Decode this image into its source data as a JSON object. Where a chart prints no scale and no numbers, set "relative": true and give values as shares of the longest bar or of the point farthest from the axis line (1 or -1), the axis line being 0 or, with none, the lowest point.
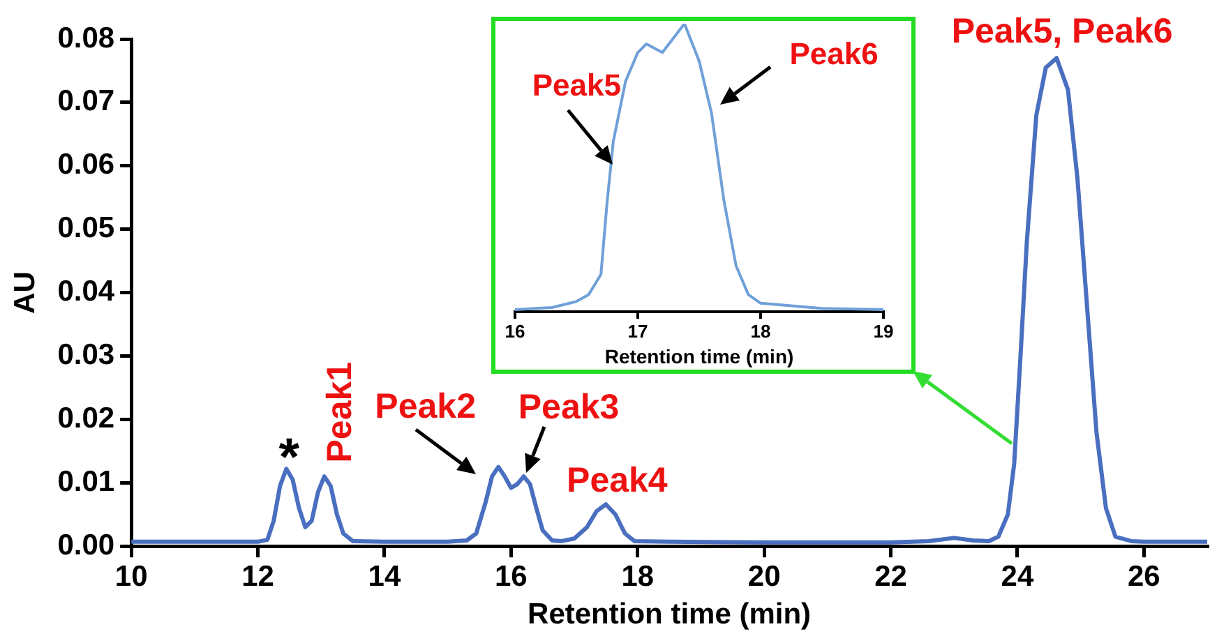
{
  "chart_data": [
    {
      "type": "line",
      "xlabel": "Retention time (min)",
      "ylabel": "AU",
      "color": "#4a6fc0",
      "x": [
        10,
        11,
        12,
        12.15,
        12.25,
        12.35,
        12.45,
        12.55,
        12.65,
        12.75,
        12.85,
        12.95,
        13.05,
        13.15,
        13.25,
        13.35,
        13.5,
        14,
        15,
        15.3,
        15.45,
        15.6,
        15.7,
        15.8,
        15.9,
        16.0,
        16.1,
        16.2,
        16.3,
        16.4,
        16.5,
        16.65,
        16.8,
        17.0,
        17.2,
        17.35,
        17.5,
        17.65,
        17.8,
        17.95,
        18.5,
        20,
        22,
        22.6,
        23.0,
        23.3,
        23.55,
        23.7,
        23.85,
        23.95,
        24.05,
        24.15,
        24.3,
        24.45,
        24.62,
        24.8,
        24.95,
        25.1,
        25.25,
        25.4,
        25.55,
        25.8,
        26,
        27
      ],
      "values": [
        0.0007,
        0.0007,
        0.0007,
        0.001,
        0.004,
        0.0095,
        0.0122,
        0.0105,
        0.006,
        0.003,
        0.004,
        0.0085,
        0.011,
        0.0095,
        0.005,
        0.002,
        0.0008,
        0.0007,
        0.0007,
        0.0009,
        0.002,
        0.007,
        0.011,
        0.0125,
        0.011,
        0.0092,
        0.0098,
        0.011,
        0.0098,
        0.006,
        0.0025,
        0.0009,
        0.0008,
        0.0012,
        0.003,
        0.0055,
        0.0066,
        0.005,
        0.002,
        0.0008,
        0.0007,
        0.0006,
        0.0006,
        0.0008,
        0.0013,
        0.0009,
        0.0008,
        0.0015,
        0.005,
        0.013,
        0.03,
        0.048,
        0.068,
        0.0755,
        0.077,
        0.072,
        0.058,
        0.038,
        0.018,
        0.006,
        0.0015,
        0.0008,
        0.0007,
        0.0007
      ],
      "xlim": [
        10,
        27
      ],
      "xticks": [
        10,
        12,
        14,
        16,
        18,
        20,
        22,
        24,
        26
      ],
      "ylim": [
        0,
        0.08
      ],
      "yticks": [
        {
          "value": 0,
          "label": "0.00"
        },
        {
          "value": 0.01,
          "label": "0.01"
        },
        {
          "value": 0.02,
          "label": "0.02"
        },
        {
          "value": 0.03,
          "label": "0.03"
        },
        {
          "value": 0.04,
          "label": "0.04"
        },
        {
          "value": 0.05,
          "label": "0.05"
        },
        {
          "value": 0.06,
          "label": "0.06"
        },
        {
          "value": 0.07,
          "label": "0.07"
        },
        {
          "value": 0.08,
          "label": "0.08"
        }
      ],
      "annotations": [
        {
          "text": "*",
          "x": 12.45,
          "y": 0.0122
        },
        {
          "text": "Peak1",
          "x": 13.05,
          "y": 0.011
        },
        {
          "text": "Peak2",
          "x": 15.75,
          "y": 0.011
        },
        {
          "text": "Peak3",
          "x": 16.25,
          "y": 0.0105
        },
        {
          "text": "Peak4",
          "x": 17.5,
          "y": 0.0066
        },
        {
          "text": "Peak5, Peak6",
          "x": 24.62,
          "y": 0.077
        }
      ]
    },
    {
      "type": "line",
      "xlabel": "Retention time (min)",
      "color": "#6fa0d8",
      "relative": true,
      "x": [
        16,
        16.3,
        16.5,
        16.6,
        16.7,
        16.75,
        16.8,
        16.9,
        17.0,
        17.07,
        17.2,
        17.38,
        17.5,
        17.6,
        17.7,
        17.8,
        17.9,
        18.0,
        18.5,
        19
      ],
      "values": [
        0.008,
        0.015,
        0.036,
        0.06,
        0.13,
        0.38,
        0.59,
        0.8,
        0.9,
        0.93,
        0.9,
        1,
        0.87,
        0.69,
        0.39,
        0.16,
        0.06,
        0.03,
        0.012,
        0.008
      ],
      "xlim": [
        16,
        19
      ],
      "xticks": [
        16,
        17,
        18,
        19
      ],
      "annotations": [
        {
          "text": "Peak5",
          "x": 16.82,
          "y": 0.5
        },
        {
          "text": "Peak6",
          "x": 17.62,
          "y": 0.7
        }
      ]
    }
  ]
}
